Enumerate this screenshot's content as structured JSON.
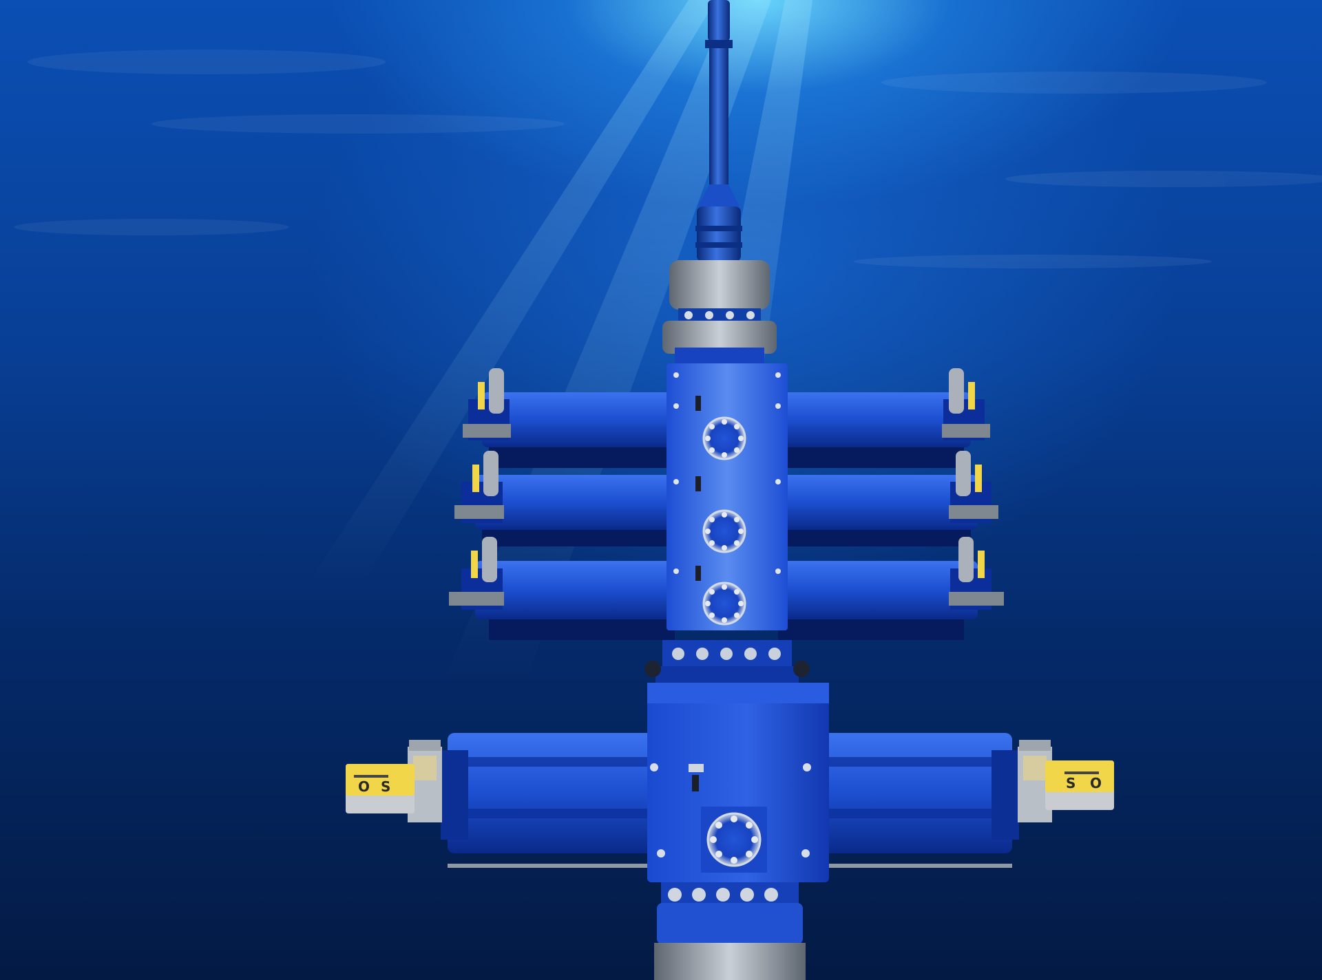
{
  "scene": {
    "subject": "subsea-bop-stack",
    "colors": {
      "water_light": "#6fdcff",
      "water_mid": "#0b4fb4",
      "water_dark": "#031a44",
      "equipment_blue": "#1f52d6",
      "equipment_dark": "#0b2e9a",
      "steel": "#9aa3ad",
      "indicator_yellow": "#f2d64a"
    }
  },
  "indicator_left": {
    "open_label": "O",
    "shut_label": "S"
  },
  "indicator_right": {
    "shut_label": "S",
    "open_label": "O"
  }
}
